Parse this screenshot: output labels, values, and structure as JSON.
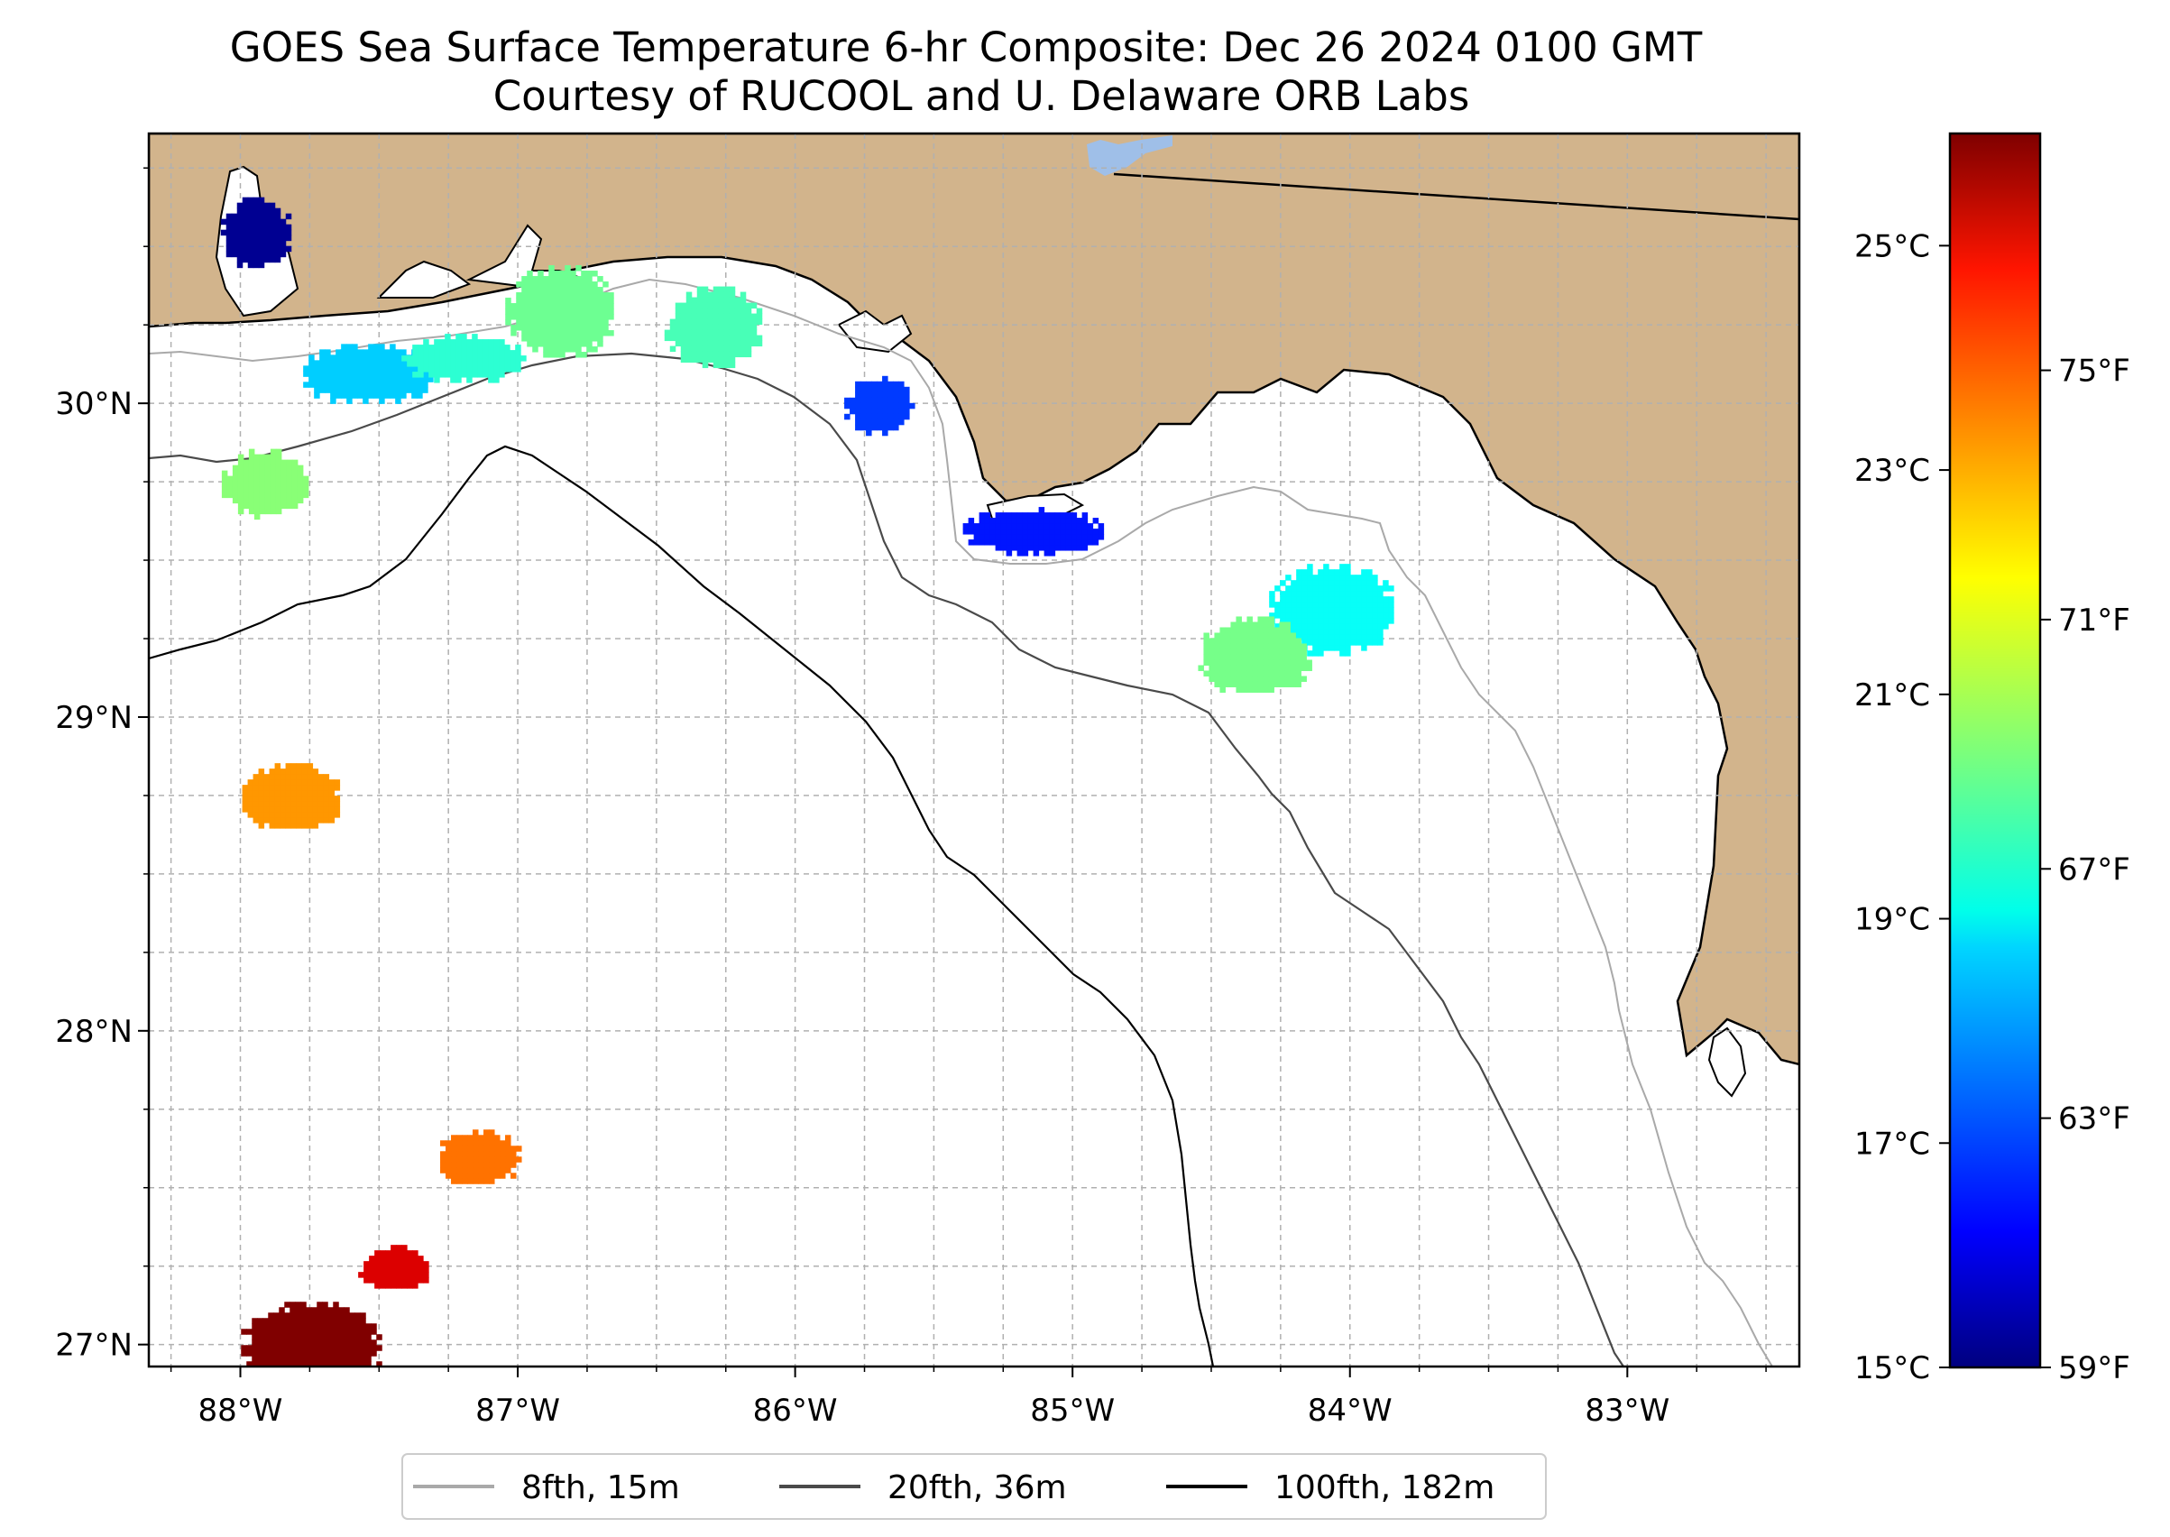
{
  "title": "GOES Sea Surface Temperature 6-hr Composite: Dec 26 2024 0100 GMT",
  "subtitle": "Courtesy of RUCOOL and U. Delaware ORB Labs",
  "colors": {
    "land": "#d2b48c",
    "ocean": "#ffffff",
    "coast": "#000000",
    "gridline": "#b0b0b0",
    "contour_8fth": "#a9a9a9",
    "contour_20fth": "#4a4a4a",
    "contour_100fth": "#000000"
  },
  "map": {
    "lon_range": [
      -88.33,
      -82.38
    ],
    "lat_range": [
      26.93,
      30.86
    ],
    "lon_ticks": [
      "88°W",
      "87°W",
      "86°W",
      "85°W",
      "84°W",
      "83°W"
    ],
    "lat_ticks": [
      "27°N",
      "28°N",
      "29°N",
      "30°N"
    ]
  },
  "colorbar": {
    "colormap": "jet",
    "celsius_range": [
      15,
      26
    ],
    "celsius_ticks": [
      "15°C",
      "17°C",
      "19°C",
      "21°C",
      "23°C",
      "25°C"
    ],
    "fahrenheit_ticks": [
      "59°F",
      "63°F",
      "67°F",
      "71°F",
      "75°F"
    ]
  },
  "legend": {
    "items": [
      {
        "label": "8fth, 15m",
        "color": "#a9a9a9"
      },
      {
        "label": "20fth, 36m",
        "color": "#4a4a4a"
      },
      {
        "label": "100fth, 182m",
        "color": "#000000"
      }
    ]
  },
  "chart_data": {
    "type": "heatmap",
    "title": "GOES Sea Surface Temperature 6-hr Composite: Dec 26 2024 0100 GMT",
    "subtitle": "Courtesy of RUCOOL and U. Delaware ORB Labs",
    "xlabel": "",
    "ylabel": "",
    "xlim": [
      -88.33,
      -82.38
    ],
    "ylim": [
      26.93,
      30.86
    ],
    "value_unit": "°C",
    "value_range": [
      15,
      26
    ],
    "sst_patches": [
      {
        "lon": -87.95,
        "lat": 30.55,
        "sst_c": 15.2
      },
      {
        "lon": -87.55,
        "lat": 30.1,
        "sst_c": 18.6
      },
      {
        "lon": -87.2,
        "lat": 30.15,
        "sst_c": 19.6
      },
      {
        "lon": -86.85,
        "lat": 30.3,
        "sst_c": 20.3
      },
      {
        "lon": -86.3,
        "lat": 30.25,
        "sst_c": 19.9
      },
      {
        "lon": -87.92,
        "lat": 29.75,
        "sst_c": 20.6
      },
      {
        "lon": -85.7,
        "lat": 30.0,
        "sst_c": 17.0
      },
      {
        "lon": -85.15,
        "lat": 29.6,
        "sst_c": 16.6
      },
      {
        "lon": -84.07,
        "lat": 29.35,
        "sst_c": 19.2
      },
      {
        "lon": -84.35,
        "lat": 29.2,
        "sst_c": 20.4
      },
      {
        "lon": -87.82,
        "lat": 28.75,
        "sst_c": 23.0
      },
      {
        "lon": -87.15,
        "lat": 27.6,
        "sst_c": 23.4
      },
      {
        "lon": -87.45,
        "lat": 27.25,
        "sst_c": 25.0
      },
      {
        "lon": -87.75,
        "lat": 27.0,
        "sst_c": 26.0
      }
    ]
  }
}
